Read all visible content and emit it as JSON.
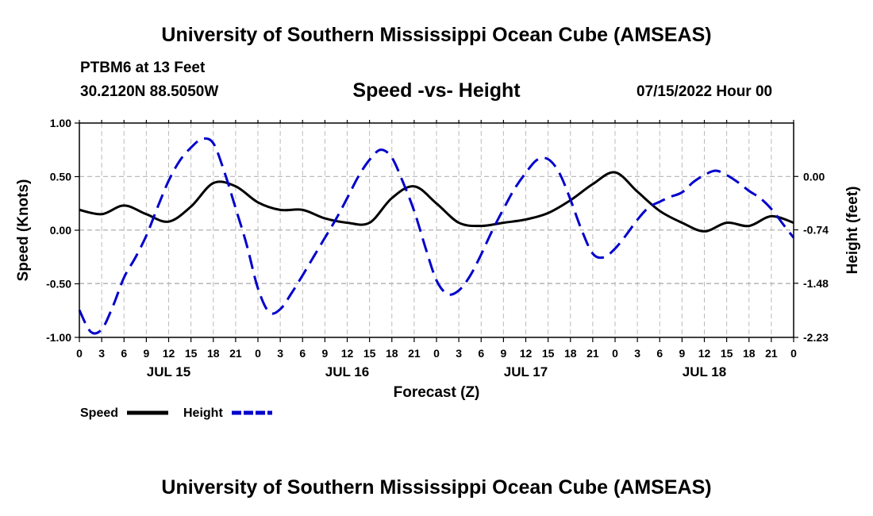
{
  "header": {
    "title": "University of Southern Mississippi Ocean Cube (AMSEAS)",
    "station": "PTBM6 at 13 Feet",
    "coordinates": "30.2120N  88.5050W",
    "subtitle": "Speed -vs- Height",
    "datetime": "07/15/2022 Hour 00"
  },
  "footer": {
    "title": "University of Southern Mississippi Ocean Cube (AMSEAS)"
  },
  "colors": {
    "speed": "#000000",
    "height": "#0000cc",
    "grid": "#bbbbbb"
  },
  "chart_data": {
    "type": "line",
    "title": "Speed -vs- Height",
    "xlabel": "Forecast (Z)",
    "ylabel_left": "Speed (Knots)",
    "ylabel_right": "Height (feet)",
    "x_range": [
      0,
      96
    ],
    "x_tick_labels": [
      "0",
      "3",
      "6",
      "9",
      "12",
      "15",
      "18",
      "21",
      "0",
      "3",
      "6",
      "9",
      "12",
      "15",
      "18",
      "21",
      "0",
      "3",
      "6",
      "9",
      "12",
      "15",
      "18",
      "21",
      "0",
      "3",
      "6",
      "9",
      "12",
      "15",
      "18",
      "21",
      "0"
    ],
    "day_labels": [
      "JUL 15",
      "JUL 16",
      "JUL 17",
      "JUL 18"
    ],
    "ylim_left": [
      -1.0,
      1.0
    ],
    "yticks_left": [
      "1.00",
      "0.50",
      "0.00",
      "-0.50",
      "-1.00"
    ],
    "ylim_right": [
      -2.23,
      0.74
    ],
    "yticks_right": [
      "0.00",
      "-0.74",
      "-1.48",
      "-2.23"
    ],
    "grid": true,
    "legend": [
      {
        "name": "Speed",
        "style": "solid"
      },
      {
        "name": "Height",
        "style": "dashed"
      }
    ],
    "series": [
      {
        "name": "Speed",
        "axis": "left",
        "units": "knots",
        "x": [
          0,
          3,
          6,
          9,
          12,
          15,
          18,
          21,
          24,
          27,
          30,
          33,
          36,
          39,
          42,
          45,
          48,
          51,
          54,
          57,
          60,
          63,
          66,
          69,
          72,
          75,
          78,
          81,
          84,
          87,
          90,
          93,
          96
        ],
        "values": [
          0.19,
          0.15,
          0.23,
          0.15,
          0.08,
          0.22,
          0.44,
          0.41,
          0.26,
          0.19,
          0.19,
          0.11,
          0.07,
          0.07,
          0.3,
          0.41,
          0.25,
          0.07,
          0.04,
          0.07,
          0.1,
          0.16,
          0.28,
          0.43,
          0.54,
          0.36,
          0.18,
          0.07,
          -0.01,
          0.07,
          0.04,
          0.13,
          0.07
        ]
      },
      {
        "name": "Height",
        "axis": "right",
        "units": "feet",
        "x": [
          0,
          1.5,
          3,
          4.5,
          6,
          7.5,
          9,
          10.5,
          12,
          13.5,
          15,
          16.5,
          18,
          19.5,
          21,
          22.5,
          24,
          25.5,
          27,
          28.5,
          30,
          31.5,
          33,
          34.5,
          36,
          37.5,
          39,
          40.5,
          42,
          43.5,
          45,
          46.5,
          48,
          49.5,
          51,
          52.5,
          54,
          55.5,
          57,
          58.5,
          60,
          61.5,
          63,
          64.5,
          66,
          67.5,
          69,
          70.5,
          72,
          73.5,
          75,
          76.5,
          78,
          79.5,
          81,
          82.5,
          84,
          85.5,
          87,
          88.5,
          90,
          91.5,
          93,
          94.5,
          96
        ],
        "values": [
          -1.85,
          -2.15,
          -2.12,
          -1.8,
          -1.4,
          -1.13,
          -0.82,
          -0.43,
          -0.06,
          0.22,
          0.4,
          0.52,
          0.46,
          0.06,
          -0.44,
          -0.95,
          -1.55,
          -1.88,
          -1.84,
          -1.62,
          -1.37,
          -1.11,
          -0.85,
          -0.59,
          -0.3,
          0.0,
          0.23,
          0.37,
          0.26,
          -0.08,
          -0.48,
          -0.98,
          -1.44,
          -1.63,
          -1.58,
          -1.38,
          -1.08,
          -0.75,
          -0.45,
          -0.17,
          0.05,
          0.23,
          0.24,
          0.05,
          -0.32,
          -0.74,
          -1.07,
          -1.12,
          -1.0,
          -0.81,
          -0.6,
          -0.43,
          -0.35,
          -0.28,
          -0.22,
          -0.08,
          0.02,
          0.08,
          0.02,
          -0.08,
          -0.2,
          -0.3,
          -0.45,
          -0.65,
          -0.85
        ]
      }
    ]
  }
}
